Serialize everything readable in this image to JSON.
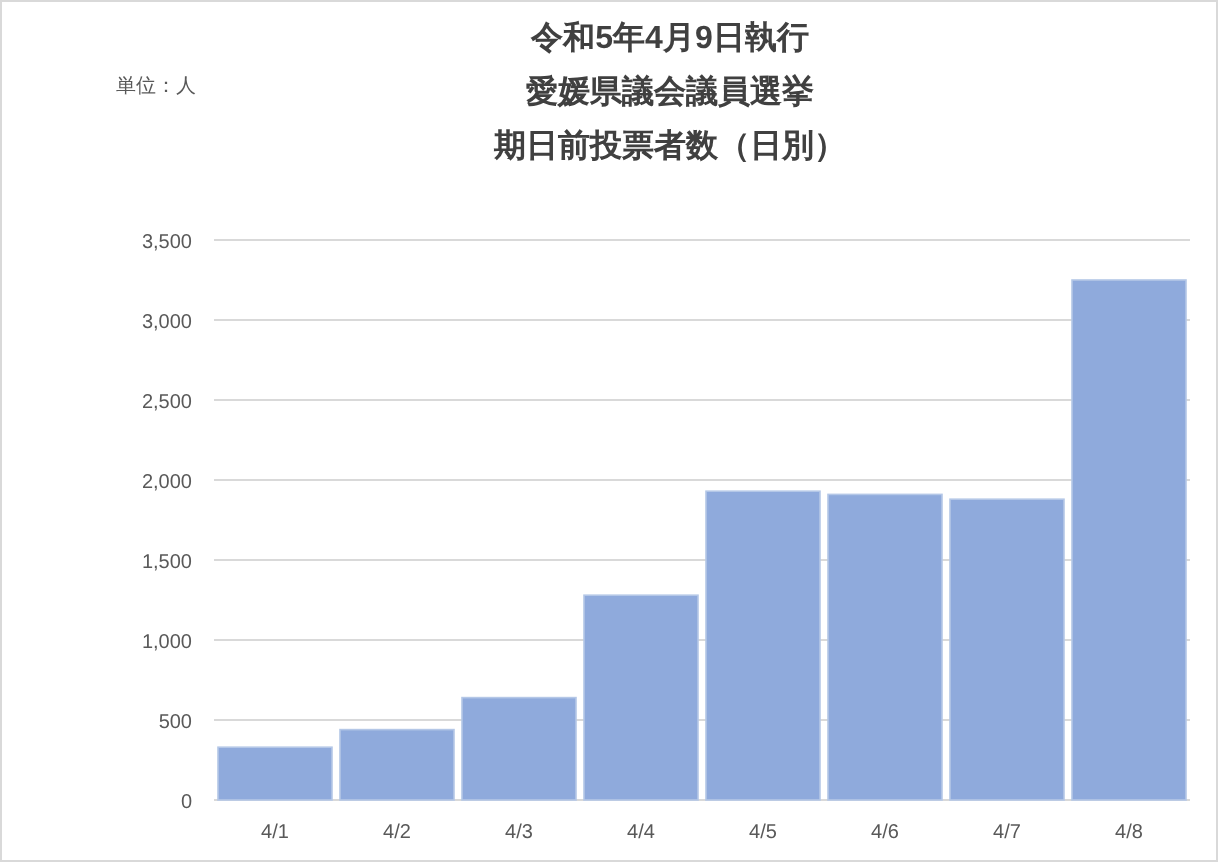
{
  "chart_data": {
    "type": "bar",
    "title": "令和5年4月9日執行",
    "subtitle": "愛媛県議会議員選挙",
    "annotations": [
      "単位：人",
      "期日前投票者数（日別）"
    ],
    "categories": [
      "4/1",
      "4/2",
      "4/3",
      "4/4",
      "4/5",
      "4/6",
      "4/7",
      "4/8"
    ],
    "values": [
      330,
      440,
      640,
      1280,
      1930,
      1910,
      1880,
      3250
    ],
    "color": "#8faadc",
    "ylim": [
      0,
      3500
    ],
    "yticks": [
      {
        "value": 0,
        "label": "0"
      },
      {
        "value": 500,
        "label": "500"
      },
      {
        "value": 1000,
        "label": "1,000"
      },
      {
        "value": 1500,
        "label": "1,500"
      },
      {
        "value": 2000,
        "label": "2,000"
      },
      {
        "value": 2500,
        "label": "2,500"
      },
      {
        "value": 3000,
        "label": "3,000"
      },
      {
        "value": 3500,
        "label": "3,500"
      }
    ],
    "grid": "y"
  }
}
